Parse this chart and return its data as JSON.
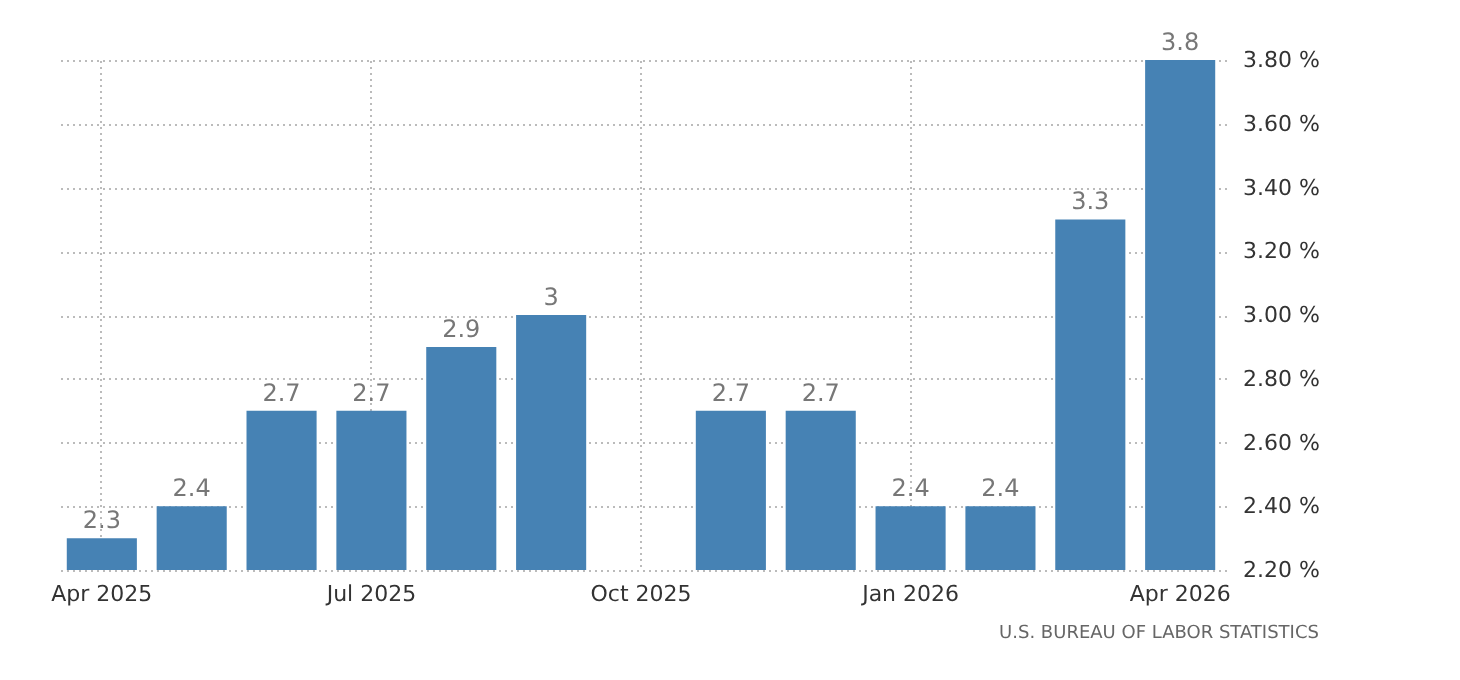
{
  "chart_data": {
    "type": "bar",
    "categories": [
      "Apr 2025",
      null,
      null,
      "Jul 2025",
      null,
      null,
      "Oct 2025",
      null,
      null,
      "Jan 2026",
      null,
      null,
      "Apr 2026"
    ],
    "values": [
      2.3,
      2.4,
      2.7,
      2.7,
      2.9,
      3,
      null,
      2.7,
      2.7,
      2.4,
      2.4,
      3.3,
      3.8
    ],
    "color": "#4682b4",
    "ylim": [
      2.2,
      3.8
    ],
    "yticks": [
      {
        "value": 2.2,
        "label": "2.20 %"
      },
      {
        "value": 2.4,
        "label": "2.40 %"
      },
      {
        "value": 2.6,
        "label": "2.60 %"
      },
      {
        "value": 2.8,
        "label": "2.80 %"
      },
      {
        "value": 3.0,
        "label": "3.00 %"
      },
      {
        "value": 3.2,
        "label": "3.20 %"
      },
      {
        "value": 3.4,
        "label": "3.40 %"
      },
      {
        "value": 3.6,
        "label": "3.60 %"
      },
      {
        "value": 3.8,
        "label": "3.80 %"
      }
    ],
    "grid": true,
    "data_labels": true,
    "annotations": [
      "U.S. BUREAU OF LABOR STATISTICS"
    ]
  }
}
